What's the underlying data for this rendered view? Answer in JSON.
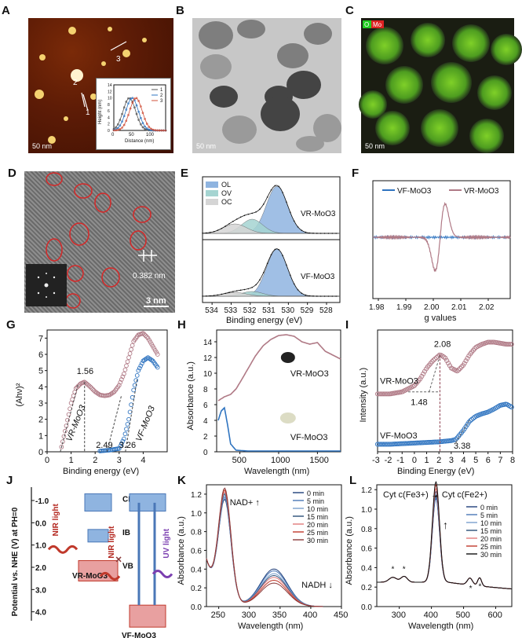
{
  "panels": {
    "A": {
      "label": "A",
      "scalebar": "50 nm",
      "inset_legend": [
        "1",
        "2",
        "3"
      ],
      "line_labels": [
        "1",
        "2",
        "3"
      ],
      "inset_xlabel": "Distance (nm)",
      "inset_ylabel": "Height (nm)"
    },
    "B": {
      "label": "B",
      "scalebar": "50 nm"
    },
    "C": {
      "label": "C",
      "scalebar": "50 nm",
      "channel_labels": [
        "O",
        "Mo"
      ],
      "channel_colors": [
        "#22cc22",
        "#dd2222"
      ]
    },
    "D": {
      "label": "D",
      "lattice": "0.382 nm",
      "scalebar": "3 nm"
    },
    "E": {
      "label": "E",
      "legend": [
        "OL",
        "OV",
        "OC"
      ],
      "legend_colors": [
        "#8fb4e0",
        "#a5d4d1",
        "#d5d5d5"
      ],
      "upper_label": "VR-MoO3",
      "lower_label": "VF-MoO3",
      "xlabel": "Binding energy (eV)"
    },
    "F": {
      "label": "F",
      "legend": [
        "VF-MoO3",
        "VR-MoO3"
      ],
      "legend_colors": [
        "#2f74c0",
        "#b07a86"
      ],
      "xlabel": "g values"
    },
    "G": {
      "label": "G",
      "ylabel": "(Ahν)²",
      "xlabel": "Binding energy (eV)",
      "vr_label": "VR-MoO3",
      "vf_label": "VF-MoO3",
      "annotations": [
        "1.56",
        "2.49",
        "3.26"
      ]
    },
    "H": {
      "label": "H",
      "ylabel": "Absorbance (a.u.)",
      "xlabel": "Wavelength (nm)",
      "vr_label": "VR-MoO3",
      "vf_label": "VF-MoO3"
    },
    "I": {
      "label": "I",
      "ylabel": "Intensity (a.u.)",
      "xlabel": "Binding Energy (eV)",
      "vr_label": "VR-MoO3",
      "vf_label": "VF-MoO3",
      "annotations": [
        "2.08",
        "1.48",
        "3.38"
      ]
    },
    "J": {
      "label": "J",
      "ylabel": "Potential vs. NHE (V) at PH=0",
      "band_labels": [
        "CB",
        "IB",
        "VB"
      ],
      "light_labels": [
        "NIR light",
        "NIR light",
        "UV light"
      ],
      "sample_labels": [
        "VR-MoO3",
        "VF-MoO3"
      ]
    },
    "K": {
      "label": "K",
      "ylabel": "Absorbance (a.u.)",
      "xlabel": "Wavelength (nm)",
      "annot_nad": "NAD+",
      "annot_nadh": "NADH",
      "legend_title_units": "min"
    },
    "L": {
      "label": "L",
      "ylabel": "Absorbance (a.u.)",
      "xlabel": "Wavelength (nm)",
      "title": "Cyt c(Fe3+) → Cyt c(Fe2+)",
      "legend_title_units": "min"
    }
  },
  "chart_data": [
    {
      "panel": "E",
      "type": "line",
      "xlabel": "Binding energy (eV)",
      "xlim": [
        534.5,
        527.3
      ],
      "ticks_x": [
        534,
        533,
        532,
        531,
        530,
        529,
        528
      ],
      "peaks_eV": {
        "OL": 530.6,
        "OV": 531.9,
        "OC": 532.8
      }
    },
    {
      "panel": "F",
      "type": "line",
      "xlabel": "g values",
      "xlim": [
        1.978,
        2.028
      ],
      "ticks_x": [
        1.98,
        1.99,
        2.0,
        2.01,
        2.02
      ],
      "series": [
        {
          "name": "VF-MoO3",
          "color": "#2f74c0"
        },
        {
          "name": "VR-MoO3",
          "color": "#b07a86"
        }
      ]
    },
    {
      "panel": "G",
      "type": "scatter",
      "xlabel": "Binding energy (eV)",
      "ylabel": "(Ahν)²",
      "xlim": [
        0,
        5
      ],
      "ylim": [
        0,
        7.5
      ],
      "ticks_x": [
        0,
        1,
        2,
        3,
        4
      ],
      "ticks_y": [
        0,
        1,
        2,
        3,
        4,
        5,
        6,
        7
      ],
      "series": [
        {
          "name": "VR-MoO3",
          "x": [
            0.6,
            0.8,
            1.0,
            1.2,
            1.4,
            1.56,
            1.8,
            2.0,
            2.2,
            2.4,
            2.6,
            2.8,
            3.0,
            3.2,
            3.4,
            3.6,
            3.8,
            4.0,
            4.2,
            4.4,
            4.6
          ],
          "y": [
            0.3,
            1.6,
            3.0,
            3.9,
            4.2,
            4.3,
            4.0,
            3.7,
            3.5,
            3.45,
            3.5,
            3.7,
            4.1,
            4.8,
            5.8,
            6.8,
            7.2,
            7.3,
            7.0,
            6.5,
            6.0
          ]
        },
        {
          "name": "VF-MoO3",
          "x": [
            2.2,
            2.6,
            3.0,
            3.2,
            3.4,
            3.6,
            3.8,
            4.0,
            4.2,
            4.4,
            4.6
          ],
          "y": [
            0.05,
            0.1,
            0.2,
            0.8,
            2.0,
            3.8,
            5.0,
            5.6,
            5.8,
            5.6,
            5.2
          ]
        }
      ]
    },
    {
      "panel": "H",
      "type": "line",
      "xlabel": "Wavelength (nm)",
      "ylabel": "Absorbance (a.u.)",
      "xlim": [
        200,
        1800
      ],
      "ylim": [
        0,
        15.5
      ],
      "ticks_x": [
        500,
        1000,
        1500
      ],
      "ticks_y": [
        0,
        2,
        4,
        6,
        8,
        10,
        12,
        14
      ],
      "series": [
        {
          "name": "VR-MoO3",
          "x": [
            220,
            300,
            380,
            450,
            500,
            600,
            700,
            800,
            900,
            1000,
            1100,
            1200,
            1300,
            1400,
            1500,
            1600,
            1700,
            1800
          ],
          "y": [
            6.5,
            7.0,
            7.3,
            8.0,
            8.8,
            10.5,
            12.2,
            13.5,
            14.3,
            14.8,
            14.9,
            14.7,
            14.0,
            13.7,
            13.9,
            12.8,
            12.3,
            11.8
          ]
        },
        {
          "name": "VF-MoO3",
          "x": [
            220,
            260,
            300,
            340,
            380,
            450,
            600,
            1000,
            1500,
            1800
          ],
          "y": [
            4.0,
            5.2,
            5.6,
            3.5,
            1.0,
            0.2,
            0.1,
            0.1,
            0.1,
            0.1
          ]
        }
      ]
    },
    {
      "panel": "I",
      "type": "scatter",
      "xlabel": "Binding Energy (eV)",
      "ylabel": "Intensity (a.u.)",
      "xlim": [
        -3,
        8
      ],
      "ticks_x": [
        -3,
        -2,
        -1,
        0,
        1,
        2,
        3,
        4,
        5,
        6,
        7,
        8
      ],
      "series": [
        {
          "name": "VR-MoO3",
          "x": [
            -3,
            -2,
            -1,
            0,
            0.5,
            1,
            1.5,
            2.08,
            2.5,
            3,
            3.5,
            4,
            4.5,
            5,
            5.5,
            6,
            6.5,
            7,
            7.5,
            8
          ],
          "y": [
            0.5,
            0.5,
            0.52,
            0.58,
            0.65,
            0.75,
            0.82,
            0.88,
            0.85,
            0.75,
            0.72,
            0.78,
            0.88,
            0.95,
            0.98,
            1.0,
            1.0,
            0.99,
            0.98,
            0.98
          ]
        },
        {
          "name": "VF-MoO3",
          "x": [
            -3,
            -2,
            -1,
            0,
            1,
            2,
            3,
            3.38,
            4,
            4.5,
            5,
            5.5,
            6,
            6.5,
            7,
            7.5,
            8
          ],
          "y": [
            0.02,
            0.02,
            0.03,
            0.04,
            0.05,
            0.06,
            0.08,
            0.1,
            0.25,
            0.4,
            0.48,
            0.52,
            0.55,
            0.6,
            0.66,
            0.68,
            0.62
          ]
        }
      ]
    },
    {
      "panel": "K",
      "type": "line",
      "xlabel": "Wavelength (nm)",
      "ylabel": "Absorbance (a.u.)",
      "xlim": [
        230,
        450
      ],
      "ylim": [
        0,
        1.3
      ],
      "ticks_x": [
        250,
        300,
        350,
        400,
        450
      ],
      "ticks_y": [
        0.0,
        0.2,
        0.4,
        0.6,
        0.8,
        1.0,
        1.2
      ],
      "series": [
        {
          "name": "0 min",
          "color": "#1f3f7a",
          "peak340": 0.4
        },
        {
          "name": "5 min",
          "color": "#4a77b7",
          "peak340": 0.38
        },
        {
          "name": "10 min",
          "color": "#7aa0cd",
          "peak340": 0.35
        },
        {
          "name": "15 min",
          "color": "#2b4f78",
          "peak340": 0.33
        },
        {
          "name": "20 min",
          "color": "#e07b7b",
          "peak340": 0.31
        },
        {
          "name": "25 min",
          "color": "#c0392b",
          "peak340": 0.28
        },
        {
          "name": "30 min",
          "color": "#8b3a3a",
          "peak340": 0.25
        }
      ]
    },
    {
      "panel": "L",
      "type": "line",
      "xlabel": "Wavelength (nm)",
      "ylabel": "Absorbance (a.u.)",
      "xlim": [
        230,
        650
      ],
      "ylim": [
        0,
        1.25
      ],
      "ticks_x": [
        300,
        400,
        500,
        600
      ],
      "ticks_y": [
        0.0,
        0.2,
        0.4,
        0.6,
        0.8,
        1.0,
        1.2
      ],
      "series": [
        {
          "name": "0 min",
          "color": "#1f3f7a",
          "peak": 0.86
        },
        {
          "name": "5 min",
          "color": "#4a77b7",
          "peak": 0.88
        },
        {
          "name": "10 min",
          "color": "#7aa0cd",
          "peak": 0.9
        },
        {
          "name": "15 min",
          "color": "#2b4f78",
          "peak": 0.93
        },
        {
          "name": "20 min",
          "color": "#e07b7b",
          "peak": 0.96
        },
        {
          "name": "25 min",
          "color": "#c0392b",
          "peak": 1.0
        },
        {
          "name": "30 min",
          "color": "#111111",
          "peak": 1.03
        }
      ]
    }
  ]
}
